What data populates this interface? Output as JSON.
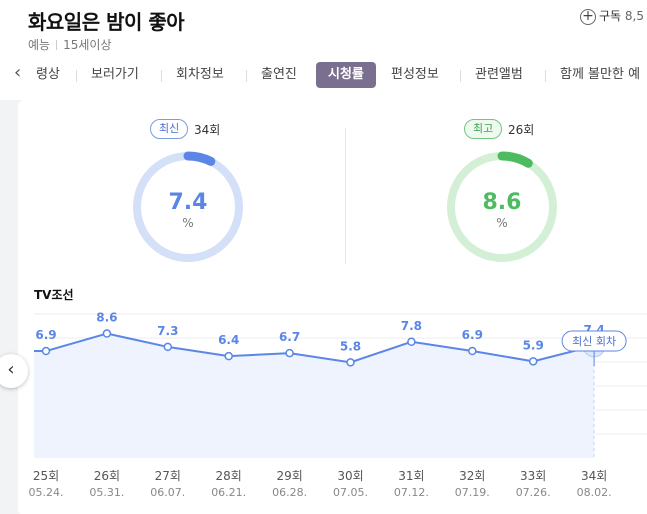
{
  "program": {
    "title": "화요일은 밤이 좋아",
    "genre": "예능",
    "rating": "15세이상"
  },
  "subscribe": {
    "icon": "plus-icon",
    "label": "구독",
    "count": "8,5"
  },
  "tabs": [
    {
      "label": "령상",
      "active": false
    },
    {
      "label": "보러가기",
      "active": false
    },
    {
      "label": "회차정보",
      "active": false
    },
    {
      "label": "출연진",
      "active": false
    },
    {
      "label": "시청률",
      "active": true
    },
    {
      "label": "편성정보",
      "active": false
    },
    {
      "label": "관련앨범",
      "active": false
    },
    {
      "label": "함께 볼만한 예",
      "active": false
    }
  ],
  "latest": {
    "badge": "최신",
    "episode": "34회",
    "value": "7.4",
    "unit": "%",
    "color": "#5b86e5",
    "track_color": "#d4e0f8",
    "fraction": 0.074
  },
  "best": {
    "badge": "최고",
    "episode": "26회",
    "value": "8.6",
    "unit": "%",
    "color": "#4dbb5f",
    "track_color": "#d3f0d7",
    "fraction": 0.086
  },
  "chart_data": {
    "type": "line",
    "title": "TV조선",
    "x": [
      "25회",
      "26회",
      "27회",
      "28회",
      "29회",
      "30회",
      "31회",
      "32회",
      "33회",
      "34회"
    ],
    "dates": [
      "05.24.",
      "05.31.",
      "06.07.",
      "06.21.",
      "06.28.",
      "07.05.",
      "07.12.",
      "07.19.",
      "07.26.",
      "08.02."
    ],
    "series": [
      {
        "values": [
          6.9,
          8.6,
          7.3,
          6.4,
          6.7,
          5.8,
          7.8,
          6.9,
          5.9,
          7.4
        ]
      }
    ],
    "highlight_label": "최신 회차",
    "line_color": "#5b86e5",
    "fill_color": "#eef3fd",
    "grid": true
  }
}
